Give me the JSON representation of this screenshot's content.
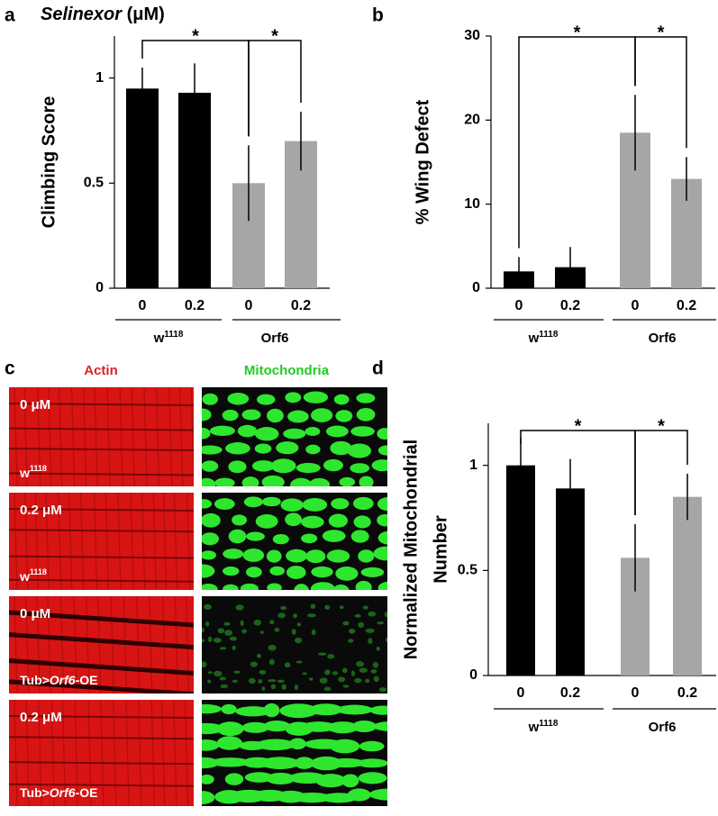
{
  "chart_data": [
    {
      "type": "bar",
      "panel": "a",
      "title_parts": [
        "Selinexor",
        "(μM)"
      ],
      "y_label": [
        "Climbing Score"
      ],
      "categories": [
        "0",
        "0.2",
        "0",
        "0.2"
      ],
      "values": [
        0.95,
        0.93,
        0.5,
        0.7
      ],
      "errors": [
        0.1,
        0.14,
        0.18,
        0.14
      ],
      "colors": [
        "#000000",
        "#000000",
        "#a6a6a6",
        "#a6a6a6"
      ],
      "groups": [
        {
          "name": "w",
          "sup": "1118"
        },
        {
          "name": "Orf6",
          "sup": ""
        }
      ],
      "annotations": [
        "*",
        "*"
      ],
      "ylim": [
        0,
        1.2
      ],
      "yticks": [
        0,
        0.5,
        1
      ]
    },
    {
      "type": "bar",
      "panel": "b",
      "y_label": [
        "% Wing Defect"
      ],
      "categories": [
        "0",
        "0.2",
        "0",
        "0.2"
      ],
      "values": [
        2,
        2.5,
        18.5,
        13
      ],
      "errors": [
        1.7,
        2.4,
        4.5,
        2.6
      ],
      "colors": [
        "#000000",
        "#000000",
        "#a6a6a6",
        "#a6a6a6"
      ],
      "groups": [
        {
          "name": "w",
          "sup": "1118"
        },
        {
          "name": "Orf6",
          "sup": ""
        }
      ],
      "annotations": [
        "*",
        "*"
      ],
      "ylim": [
        0,
        30
      ],
      "yticks": [
        0,
        10,
        20,
        30
      ]
    },
    {
      "type": "bar",
      "panel": "d",
      "y_label": [
        "Normalized Mitochondrial",
        "Number"
      ],
      "categories": [
        "0",
        "0.2",
        "0",
        "0.2"
      ],
      "values": [
        1.0,
        0.89,
        0.56,
        0.85
      ],
      "errors": [
        0.13,
        0.14,
        0.16,
        0.11
      ],
      "colors": [
        "#000000",
        "#000000",
        "#a6a6a6",
        "#a6a6a6"
      ],
      "groups": [
        {
          "name": "w",
          "sup": "1118"
        },
        {
          "name": "Orf6",
          "sup": ""
        }
      ],
      "annotations": [
        "*",
        "*"
      ],
      "ylim": [
        0,
        1.2
      ],
      "yticks": [
        0,
        0.5,
        1
      ]
    }
  ],
  "panel_c": {
    "panel": "c",
    "columns": [
      "Actin",
      "Mitochondria"
    ],
    "rows": [
      {
        "dose": "0 μM",
        "genotype": [
          "w",
          "1118"
        ]
      },
      {
        "dose": "0.2 μM",
        "genotype": [
          "w",
          "1118"
        ]
      },
      {
        "dose": "0 μM",
        "genotype": [
          "Tub>",
          "Orf6",
          "-OE"
        ]
      },
      {
        "dose": "0.2 μM",
        "genotype": [
          "Tub>",
          "Orf6",
          "-OE"
        ]
      }
    ]
  }
}
